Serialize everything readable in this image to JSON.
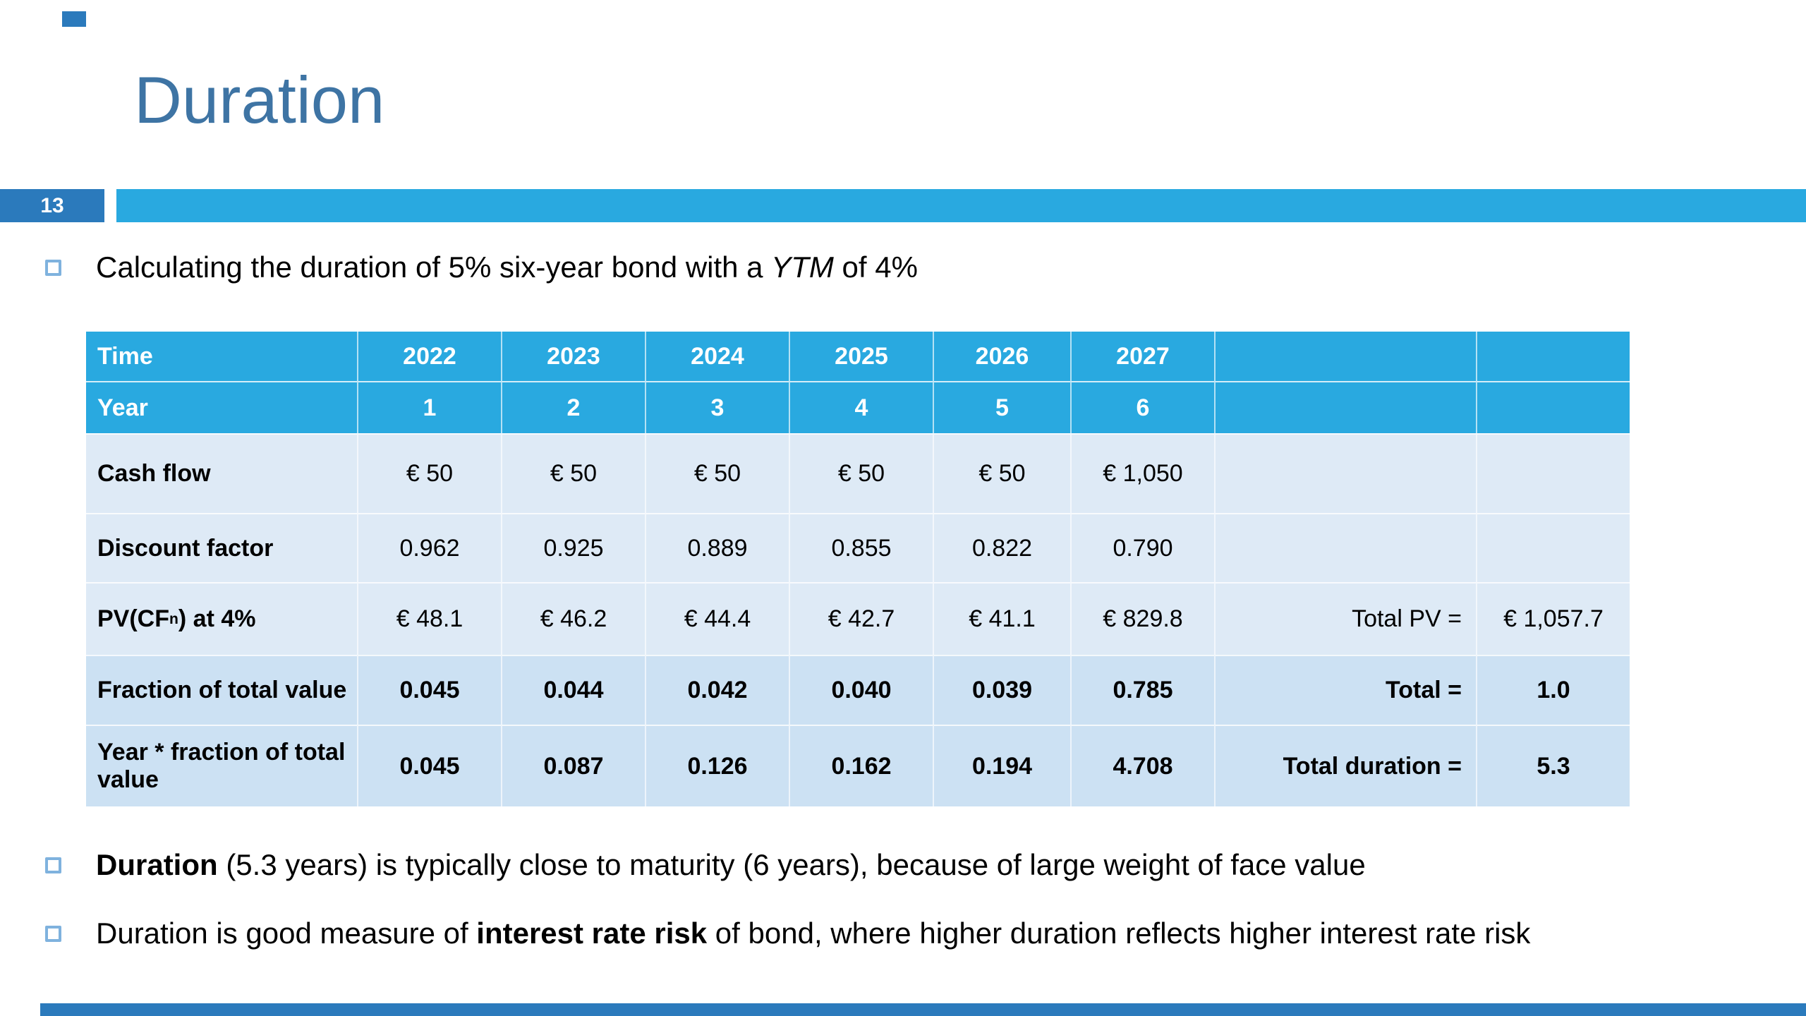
{
  "slide": {
    "title": "Duration",
    "page_number": "13",
    "bullet1": {
      "pre": "Calculating the duration of 5% six-year bond with a ",
      "italic": "YTM",
      "post": " of 4%"
    },
    "bullet2": {
      "bold": "Duration",
      "rest": " (5.3 years) is typically close to maturity (6 years), because of large weight of face value"
    },
    "bullet3": {
      "pre": "Duration is good measure of ",
      "bold": "interest rate risk",
      "post": " of bond, where higher duration reflects higher interest rate risk"
    },
    "colors": {
      "accent_cyan": "#29A9E0",
      "accent_blue": "#2B7ABC",
      "title_blue": "#3E74A4",
      "row_light": "#DEEAF6",
      "row_mid": "#CCE1F3",
      "bullet_border": "#7FB2DE"
    }
  },
  "table": {
    "header": {
      "time_label": "Time",
      "years": [
        "2022",
        "2023",
        "2024",
        "2025",
        "2026",
        "2027"
      ]
    },
    "year_row": {
      "label": "Year",
      "values": [
        "1",
        "2",
        "3",
        "4",
        "5",
        "6"
      ]
    },
    "rows": [
      {
        "label": "Cash flow",
        "values": [
          "€ 50",
          "€ 50",
          "€ 50",
          "€ 50",
          "€ 50",
          "€ 1,050"
        ],
        "total_label": "",
        "total_value": ""
      },
      {
        "label": "Discount factor",
        "values": [
          "0.962",
          "0.925",
          "0.889",
          "0.855",
          "0.822",
          "0.790"
        ],
        "total_label": "",
        "total_value": ""
      },
      {
        "label_pre": "PV(CF",
        "label_sub": "n",
        "label_post": ") at 4%",
        "values": [
          "€ 48.1",
          "€ 46.2",
          "€ 44.4",
          "€ 42.7",
          "€ 41.1",
          "€ 829.8"
        ],
        "total_label": "Total PV =",
        "total_value": "€ 1,057.7"
      },
      {
        "label": "Fraction of total value",
        "values": [
          "0.045",
          "0.044",
          "0.042",
          "0.040",
          "0.039",
          "0.785"
        ],
        "total_label": "Total =",
        "total_value": "1.0"
      },
      {
        "label": "Year * fraction of total value",
        "values": [
          "0.045",
          "0.087",
          "0.126",
          "0.162",
          "0.194",
          "4.708"
        ],
        "total_label": "Total duration =",
        "total_value": "5.3"
      }
    ]
  }
}
